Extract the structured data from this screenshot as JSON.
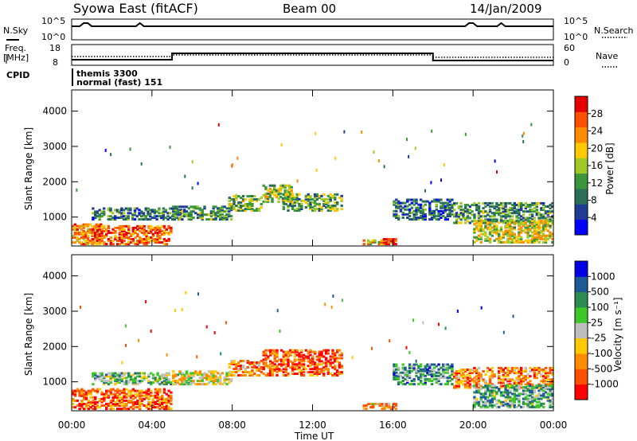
{
  "header": {
    "station": "Syowa East (fitACF)",
    "beam": "Beam 00",
    "date": "14/Jan/2009"
  },
  "top_panels": {
    "nsky_label": "N.Sky",
    "nsky_tick_top": "10^5",
    "nsky_tick_bottom": "10^0",
    "nsearch_label": "N.Search",
    "nsearch_tick_top": "10^5",
    "nsearch_tick_bottom": "10^0",
    "freq_label": "Freq.",
    "freq_unit": "[MHz]",
    "freq_tick_top": "18",
    "freq_tick_bottom": "8",
    "nave_label": "Nave",
    "nave_tick_top": "60",
    "nave_tick_bottom": "0",
    "cpid_label": "CPID",
    "cpid_lines": [
      "themis 3300",
      "normal (fast)  151"
    ]
  },
  "colors": {
    "power_scale": [
      "#0000ff",
      "#1e3c96",
      "#2a6e5a",
      "#3c963c",
      "#a0c828",
      "#ffc800",
      "#ff8c00",
      "#ff5000",
      "#e60000"
    ],
    "velocity_scale": [
      "#ff0000",
      "#ff5000",
      "#ff8c00",
      "#ffc800",
      "#bebebe",
      "#3cc828",
      "#2d8c50",
      "#1e5a96",
      "#0000e6"
    ]
  },
  "chart_data": [
    {
      "type": "heatmap",
      "panel": "power",
      "xlabel": "",
      "ylabel": "Slant Range [km]",
      "x_ticks": [
        "00:00",
        "04:00",
        "08:00",
        "12:00",
        "16:00",
        "20:00",
        "00:00"
      ],
      "xlim": [
        0,
        24
      ],
      "y_ticks": [
        "1000",
        "2000",
        "3000",
        "4000"
      ],
      "ylim": [
        180,
        4600
      ],
      "colorbar_label": "Power [dB]",
      "colorbar_ticks": [
        "4",
        "8",
        "12",
        "16",
        "20",
        "24",
        "28"
      ],
      "colorbar_range": [
        0,
        30
      ],
      "echo_regions": [
        {
          "t0": 0.0,
          "t1": 1.5,
          "r0": 200,
          "r1": 800,
          "level": 0.7
        },
        {
          "t0": 1.0,
          "t1": 5.0,
          "r0": 200,
          "r1": 750,
          "level": 0.8
        },
        {
          "t0": 1.0,
          "t1": 5.5,
          "r0": 900,
          "r1": 1250,
          "level": 0.3
        },
        {
          "t0": 5.0,
          "t1": 8.0,
          "r0": 900,
          "r1": 1300,
          "level": 0.35
        },
        {
          "t0": 7.8,
          "t1": 9.5,
          "r0": 1150,
          "r1": 1600,
          "level": 0.45
        },
        {
          "t0": 9.5,
          "t1": 11.0,
          "r0": 1400,
          "r1": 1900,
          "level": 0.5
        },
        {
          "t0": 10.5,
          "t1": 13.5,
          "r0": 1150,
          "r1": 1650,
          "level": 0.4
        },
        {
          "t0": 14.5,
          "t1": 15.8,
          "r0": 200,
          "r1": 350,
          "level": 0.65
        },
        {
          "t0": 15.5,
          "t1": 16.2,
          "r0": 200,
          "r1": 380,
          "level": 0.9
        },
        {
          "t0": 16.0,
          "t1": 19.0,
          "r0": 900,
          "r1": 1500,
          "level": 0.25
        },
        {
          "t0": 19.0,
          "t1": 24.0,
          "r0": 800,
          "r1": 1400,
          "level": 0.35
        },
        {
          "t0": 20.0,
          "t1": 24.0,
          "r0": 250,
          "r1": 900,
          "level": 0.55
        }
      ]
    },
    {
      "type": "heatmap",
      "panel": "velocity",
      "xlabel": "Time UT",
      "ylabel": "Slant Range [km]",
      "x_ticks": [
        "00:00",
        "04:00",
        "08:00",
        "12:00",
        "16:00",
        "20:00",
        "00:00"
      ],
      "xlim": [
        0,
        24
      ],
      "y_ticks": [
        "1000",
        "2000",
        "3000",
        "4000"
      ],
      "ylim": [
        180,
        4600
      ],
      "colorbar_label": "Velocity [m s⁻¹]",
      "colorbar_ticks": [
        "-1000",
        "-500",
        "-100",
        "-25",
        "25",
        "100",
        "500",
        "1000"
      ],
      "echo_regions": [
        {
          "t0": 0.0,
          "t1": 5.0,
          "r0": 200,
          "r1": 800,
          "level": 0.2
        },
        {
          "t0": 1.0,
          "t1": 6.0,
          "r0": 900,
          "r1": 1250,
          "level": 0.6
        },
        {
          "t0": 5.0,
          "t1": 8.0,
          "r0": 900,
          "r1": 1300,
          "level": 0.45
        },
        {
          "t0": 7.8,
          "t1": 9.5,
          "r0": 1150,
          "r1": 1600,
          "level": 0.3
        },
        {
          "t0": 9.5,
          "t1": 13.5,
          "r0": 1150,
          "r1": 1900,
          "level": 0.15
        },
        {
          "t0": 14.5,
          "t1": 16.2,
          "r0": 200,
          "r1": 380,
          "level": 0.35
        },
        {
          "t0": 16.0,
          "t1": 19.0,
          "r0": 900,
          "r1": 1500,
          "level": 0.7
        },
        {
          "t0": 19.0,
          "t1": 24.0,
          "r0": 800,
          "r1": 1400,
          "level": 0.25
        },
        {
          "t0": 20.0,
          "t1": 24.0,
          "r0": 250,
          "r1": 900,
          "level": 0.65
        }
      ]
    }
  ]
}
